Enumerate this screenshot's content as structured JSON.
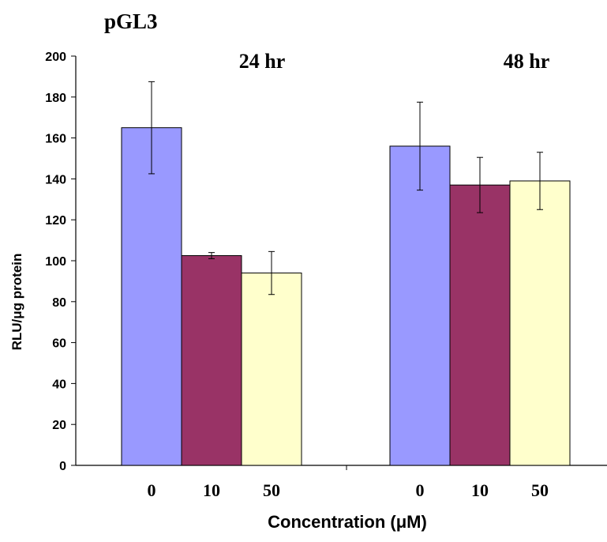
{
  "chart_data": {
    "type": "bar",
    "title": "pGL3",
    "xlabel": "Concentration (μM)",
    "ylabel": "RLU/μg protein",
    "ylim": [
      0,
      200
    ],
    "yticks": [
      "0",
      "20",
      "40",
      "60",
      "80",
      "100",
      "120",
      "140",
      "160",
      "180",
      "200"
    ],
    "grid": false,
    "legend": "none",
    "groups": [
      {
        "label": "24 hr",
        "categories": [
          "0",
          "10",
          "50"
        ],
        "values": [
          165,
          102.5,
          94
        ],
        "errors": [
          22.5,
          1.5,
          10.5
        ]
      },
      {
        "label": "48 hr",
        "categories": [
          "0",
          "10",
          "50"
        ],
        "values": [
          156,
          137,
          139
        ],
        "errors": [
          21.5,
          13.5,
          14
        ]
      }
    ],
    "colors": [
      "#9999ff",
      "#993366",
      "#ffffcc"
    ]
  }
}
